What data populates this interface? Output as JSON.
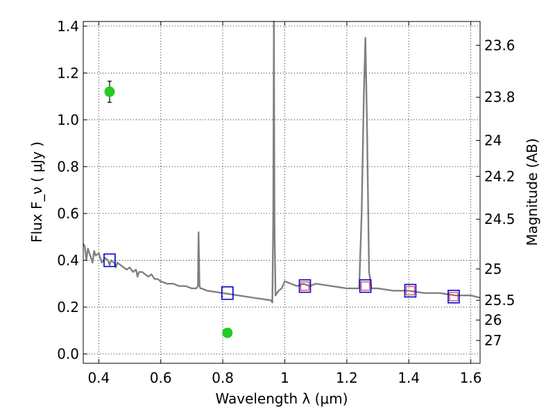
{
  "chart_data": {
    "type": "line",
    "xlabel": "Wavelength  λ (μm)",
    "ylabel": "Flux  F_ν  ( μJy )",
    "ylabel_right": "Magnitude (AB)",
    "xlim": [
      0.35,
      1.63
    ],
    "ylim": [
      -0.04,
      1.42
    ],
    "grid": true,
    "x_ticks": [
      0.4,
      0.6,
      0.8,
      1.0,
      1.2,
      1.4,
      1.6
    ],
    "x_tick_labels": [
      "0.4",
      "0.6",
      "0.8",
      "1",
      "1.2",
      "1.4",
      "1.6"
    ],
    "y_ticks": [
      0.0,
      0.2,
      0.4,
      0.6,
      0.8,
      1.0,
      1.2,
      1.4
    ],
    "y_tick_labels": [
      "0.0",
      "0.2",
      "0.4",
      "0.6",
      "0.8",
      "1.0",
      "1.2",
      "1.4"
    ],
    "mag_ticks": [
      "23.6",
      "23.8",
      "24",
      "24.2",
      "24.5",
      "25",
      "25.5",
      "26",
      "27"
    ],
    "series": [
      {
        "kind": "line",
        "color": "#808080",
        "x": [
          0.35,
          0.355,
          0.36,
          0.365,
          0.37,
          0.375,
          0.38,
          0.385,
          0.39,
          0.4,
          0.41,
          0.42,
          0.43,
          0.435,
          0.44,
          0.45,
          0.455,
          0.46,
          0.47,
          0.48,
          0.49,
          0.5,
          0.51,
          0.52,
          0.525,
          0.53,
          0.54,
          0.55,
          0.56,
          0.57,
          0.58,
          0.59,
          0.6,
          0.62,
          0.64,
          0.66,
          0.68,
          0.7,
          0.715,
          0.72,
          0.722,
          0.725,
          0.728,
          0.73,
          0.75,
          0.8,
          0.85,
          0.9,
          0.95,
          0.955,
          0.96,
          0.963,
          0.965,
          0.967,
          0.97,
          0.975,
          0.98,
          0.99,
          1.0,
          1.02,
          1.04,
          1.06,
          1.08,
          1.1,
          1.15,
          1.2,
          1.24,
          1.248,
          1.255,
          1.26,
          1.265,
          1.272,
          1.28,
          1.3,
          1.35,
          1.4,
          1.45,
          1.5,
          1.55,
          1.6,
          1.63
        ],
        "y": [
          0.47,
          0.46,
          0.4,
          0.45,
          0.43,
          0.41,
          0.39,
          0.44,
          0.42,
          0.43,
          0.39,
          0.41,
          0.4,
          0.38,
          0.4,
          0.39,
          0.37,
          0.39,
          0.38,
          0.37,
          0.36,
          0.37,
          0.35,
          0.36,
          0.33,
          0.35,
          0.35,
          0.34,
          0.33,
          0.34,
          0.32,
          0.32,
          0.31,
          0.3,
          0.3,
          0.29,
          0.29,
          0.28,
          0.28,
          0.29,
          0.52,
          0.29,
          0.28,
          0.28,
          0.27,
          0.26,
          0.25,
          0.24,
          0.23,
          0.23,
          0.22,
          0.6,
          1.42,
          0.55,
          0.25,
          0.26,
          0.27,
          0.28,
          0.31,
          0.3,
          0.29,
          0.3,
          0.29,
          0.3,
          0.29,
          0.28,
          0.28,
          0.6,
          1.1,
          1.35,
          1.0,
          0.35,
          0.28,
          0.28,
          0.27,
          0.27,
          0.26,
          0.26,
          0.25,
          0.25,
          0.24
        ]
      },
      {
        "kind": "points",
        "marker": "square-open",
        "color": "#0000cc",
        "x": [
          0.435,
          0.815,
          1.065,
          1.26,
          1.405,
          1.545
        ],
        "y": [
          0.4,
          0.26,
          0.29,
          0.29,
          0.27,
          0.245
        ]
      },
      {
        "kind": "points",
        "marker": "square-open-small",
        "color": "#e03060",
        "x": [
          1.065,
          1.26,
          1.405,
          1.545
        ],
        "y": [
          0.29,
          0.29,
          0.27,
          0.245
        ]
      },
      {
        "kind": "points",
        "marker": "circle",
        "color": "#22cc22",
        "x": [
          0.435,
          0.815
        ],
        "y": [
          1.12,
          0.09
        ],
        "yerr": [
          0.045,
          0.015
        ]
      }
    ]
  }
}
